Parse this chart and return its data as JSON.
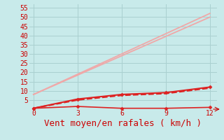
{
  "title": "",
  "xlabel": "Vent moyen/en rafales ( km/h )",
  "bg_color": "#c8eaea",
  "grid_color": "#aad0d0",
  "xlim": [
    -0.3,
    12.5
  ],
  "ylim": [
    0,
    57
  ],
  "yticks": [
    5,
    10,
    15,
    20,
    25,
    30,
    35,
    40,
    45,
    50,
    55
  ],
  "xticks": [
    0,
    3,
    6,
    9,
    12
  ],
  "lines": [
    {
      "x": [
        0,
        12
      ],
      "y": [
        8,
        52
      ],
      "color": "#f0a8a8",
      "lw": 1.3,
      "marker": null,
      "ls": "-"
    },
    {
      "x": [
        0,
        12
      ],
      "y": [
        8,
        50
      ],
      "color": "#f0a8a8",
      "lw": 1.3,
      "marker": null,
      "ls": "-"
    },
    {
      "x": [
        0,
        3,
        6,
        9,
        12
      ],
      "y": [
        0.5,
        5.5,
        8.0,
        9.0,
        12.0
      ],
      "color": "#dd2222",
      "lw": 1.5,
      "marker": "D",
      "markersize": 2.5,
      "ls": "-"
    },
    {
      "x": [
        0,
        3,
        6,
        9,
        12
      ],
      "y": [
        0.5,
        5.0,
        7.5,
        8.5,
        11.5
      ],
      "color": "#dd2222",
      "lw": 1.5,
      "marker": null,
      "ls": "--"
    },
    {
      "x": [
        0,
        3,
        6,
        9,
        12
      ],
      "y": [
        0.5,
        1.5,
        0.5,
        0.5,
        1.0
      ],
      "color": "#dd2222",
      "lw": 1.2,
      "marker": "D",
      "markersize": 2.5,
      "ls": "-"
    }
  ],
  "font_color": "#cc0000",
  "tick_fontsize": 7,
  "xlabel_fontsize": 9
}
